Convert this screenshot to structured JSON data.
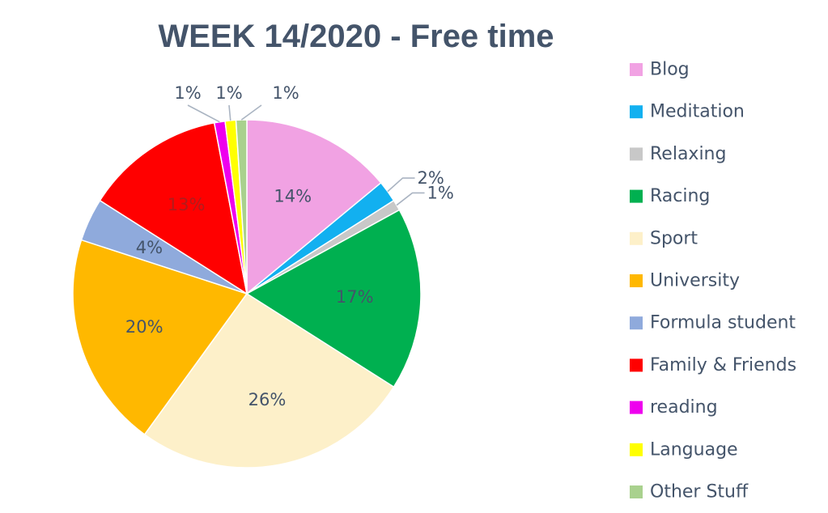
{
  "chart_data": {
    "type": "pie",
    "title": "WEEK 14/2020 - Free time",
    "legend_position": "right",
    "slices": [
      {
        "label": "Blog",
        "value": 14,
        "display": "14%",
        "color": "#f1a2e3"
      },
      {
        "label": "Meditation",
        "value": 2,
        "display": "2%",
        "color": "#12b0f0"
      },
      {
        "label": "Relaxing",
        "value": 1,
        "display": "1%",
        "color": "#c8c8c8"
      },
      {
        "label": "Racing",
        "value": 17,
        "display": "17%",
        "color": "#00b050"
      },
      {
        "label": "Sport",
        "value": 26,
        "display": "26%",
        "color": "#fdf0c9"
      },
      {
        "label": "University",
        "value": 20,
        "display": "20%",
        "color": "#ffb800"
      },
      {
        "label": "Formula student",
        "value": 4,
        "display": "4%",
        "color": "#8faadc"
      },
      {
        "label": "Family & Friends",
        "value": 13,
        "display": "13%",
        "color": "#ff0000"
      },
      {
        "label": "reading",
        "value": 1,
        "display": "1%",
        "color": "#ee00ee"
      },
      {
        "label": "Language",
        "value": 1,
        "display": "1%",
        "color": "#ffff00"
      },
      {
        "label": "Other Stuff",
        "value": 1,
        "display": "1%",
        "color": "#a9d18e"
      }
    ]
  }
}
